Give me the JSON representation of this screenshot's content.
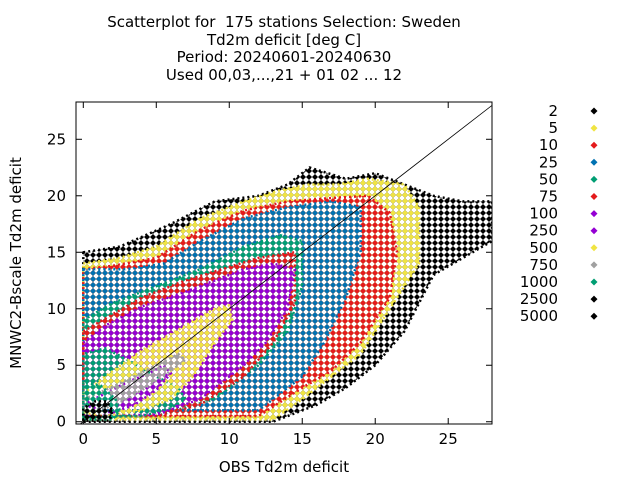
{
  "chart_data": {
    "type": "scatter",
    "title_lines": [
      "Scatterplot for  175 stations Selection: Sweden",
      "Td2m deficit [deg C]",
      "Period: 20240601-20240630",
      "Used 00,03,...,21 + 01 02 ... 12"
    ],
    "xlabel": "OBS Td2m deficit",
    "ylabel": "MNWC2-Bscale Td2m deficit",
    "xlim": [
      -0.5,
      28
    ],
    "ylim": [
      -0.2,
      28.3
    ],
    "xticks": [
      0,
      5,
      10,
      15,
      20,
      25
    ],
    "yticks": [
      0,
      5,
      10,
      15,
      20,
      25
    ],
    "diagonal": true,
    "marker": "diamond",
    "legend_position": "right",
    "legend": [
      {
        "label": "2",
        "color": "#000000"
      },
      {
        "label": "5",
        "color": "#f0e442"
      },
      {
        "label": "10",
        "color": "#e41a1c"
      },
      {
        "label": "25",
        "color": "#0072b2"
      },
      {
        "label": "50",
        "color": "#009e73"
      },
      {
        "label": "75",
        "color": "#e41a1c"
      },
      {
        "label": "100",
        "color": "#9400d3"
      },
      {
        "label": "250",
        "color": "#9400d3"
      },
      {
        "label": "500",
        "color": "#f0e442"
      },
      {
        "label": "750",
        "color": "#a0a0a0"
      },
      {
        "label": "1000",
        "color": "#009e73"
      },
      {
        "label": "2500",
        "color": "#000000"
      },
      {
        "label": "5000",
        "color": "#000000"
      }
    ],
    "density_regions": [
      {
        "color": "#000000",
        "points": [
          [
            0,
            15
          ],
          [
            2.5,
            15.5
          ],
          [
            6,
            17.5
          ],
          [
            9,
            19.5
          ],
          [
            12,
            20
          ],
          [
            14,
            21
          ],
          [
            15.5,
            22.5
          ],
          [
            18,
            21.5
          ],
          [
            20,
            22
          ],
          [
            22,
            21
          ],
          [
            24,
            20
          ],
          [
            26,
            19.5
          ],
          [
            28,
            19.5
          ],
          [
            28,
            16
          ],
          [
            24,
            13
          ],
          [
            22,
            8
          ],
          [
            20,
            5
          ],
          [
            18,
            3
          ],
          [
            16,
            1.5
          ],
          [
            13,
            0
          ],
          [
            0,
            0
          ]
        ]
      },
      {
        "color": "#f0e442",
        "points": [
          [
            0,
            14
          ],
          [
            2.5,
            14.5
          ],
          [
            5,
            15.5
          ],
          [
            8,
            18
          ],
          [
            11,
            19.5
          ],
          [
            13.5,
            20.5
          ],
          [
            15.5,
            21
          ],
          [
            17.5,
            21
          ],
          [
            19.5,
            21.5
          ],
          [
            22,
            21
          ],
          [
            23,
            19
          ],
          [
            23,
            14
          ],
          [
            21,
            10
          ],
          [
            19,
            6
          ],
          [
            17,
            4
          ],
          [
            15,
            2
          ],
          [
            13,
            0.2
          ],
          [
            0,
            0.2
          ]
        ]
      },
      {
        "color": "#e41a1c",
        "points": [
          [
            0,
            13.5
          ],
          [
            2,
            13.8
          ],
          [
            5,
            14.5
          ],
          [
            8,
            17
          ],
          [
            11,
            18.7
          ],
          [
            14,
            19.5
          ],
          [
            17,
            19.8
          ],
          [
            19.5,
            20
          ],
          [
            21,
            18.5
          ],
          [
            21.5,
            15
          ],
          [
            21,
            11
          ],
          [
            19,
            7
          ],
          [
            17,
            4.5
          ],
          [
            15,
            3
          ],
          [
            12,
            0.5
          ],
          [
            0,
            0.5
          ]
        ]
      },
      {
        "color": "#0072b2",
        "points": [
          [
            0,
            13.5
          ],
          [
            3,
            13.5
          ],
          [
            5.5,
            14
          ],
          [
            8,
            16
          ],
          [
            11,
            18
          ],
          [
            14,
            19
          ],
          [
            17,
            19.5
          ],
          [
            19,
            19
          ],
          [
            19,
            15
          ],
          [
            18,
            11
          ],
          [
            16.5,
            7
          ],
          [
            15,
            4
          ],
          [
            12,
            1
          ],
          [
            0,
            1
          ]
        ]
      },
      {
        "color": "#009e73",
        "points": [
          [
            0,
            9
          ],
          [
            2,
            10.5
          ],
          [
            5,
            12
          ],
          [
            8,
            13.5
          ],
          [
            11,
            15.5
          ],
          [
            13.5,
            16.5
          ],
          [
            15,
            16
          ],
          [
            15,
            12
          ],
          [
            14,
            8
          ],
          [
            12,
            5
          ],
          [
            9,
            2
          ],
          [
            5,
            0.5
          ],
          [
            0,
            0.5
          ]
        ]
      },
      {
        "color": "#e41a1c",
        "points": [
          [
            0,
            8
          ],
          [
            2,
            9.5
          ],
          [
            4,
            11
          ],
          [
            7,
            12.5
          ],
          [
            9.5,
            13.5
          ],
          [
            12,
            14.5
          ],
          [
            14.5,
            15
          ],
          [
            14.5,
            10.5
          ],
          [
            13,
            7
          ],
          [
            11,
            4
          ],
          [
            8,
            1.5
          ],
          [
            5,
            0.5
          ],
          [
            0,
            0.5
          ]
        ]
      },
      {
        "color": "#9400d3",
        "points": [
          [
            0,
            7
          ],
          [
            1.5,
            8.5
          ],
          [
            4,
            10.2
          ],
          [
            7,
            11.5
          ],
          [
            9,
            12.5
          ],
          [
            11,
            13.5
          ],
          [
            13,
            14
          ],
          [
            14.5,
            13.5
          ],
          [
            14,
            10
          ],
          [
            12.5,
            7
          ],
          [
            11,
            5
          ],
          [
            8,
            2
          ],
          [
            5,
            0.6
          ],
          [
            0,
            0.6
          ]
        ]
      },
      {
        "color": "#009e73",
        "points": [
          [
            0,
            0.4
          ],
          [
            0,
            6
          ],
          [
            1.5,
            6.5
          ],
          [
            3,
            5.5
          ],
          [
            5,
            4
          ],
          [
            6.5,
            3
          ],
          [
            7,
            2
          ],
          [
            6,
            1.2
          ],
          [
            4,
            0.5
          ]
        ]
      },
      {
        "color": "#f0e442",
        "points": [
          [
            0,
            2.5
          ],
          [
            1.5,
            4
          ],
          [
            4,
            6.3
          ],
          [
            7,
            8.5
          ],
          [
            9,
            10
          ],
          [
            10,
            10.3
          ],
          [
            10.2,
            9
          ],
          [
            9,
            7
          ],
          [
            7.5,
            4
          ],
          [
            6,
            2
          ],
          [
            4,
            1
          ],
          [
            1.5,
            0.5
          ],
          [
            0,
            0.8
          ]
        ]
      },
      {
        "color": "#9400d3",
        "points": [
          [
            0,
            1.5
          ],
          [
            1.5,
            2.5
          ],
          [
            3,
            3.5
          ],
          [
            4.5,
            4.3
          ],
          [
            5.5,
            5
          ],
          [
            6,
            4.3
          ],
          [
            5,
            2.8
          ],
          [
            3.5,
            1.5
          ],
          [
            2,
            0.8
          ]
        ]
      },
      {
        "color": "#a0a0a0",
        "points": [
          [
            0,
            2
          ],
          [
            1,
            2.5
          ],
          [
            3,
            3.7
          ],
          [
            5,
            5
          ],
          [
            6.5,
            6
          ],
          [
            7,
            5.5
          ],
          [
            6,
            4.5
          ],
          [
            4.5,
            3.2
          ],
          [
            3,
            2
          ],
          [
            1.5,
            1.2
          ],
          [
            0,
            1
          ]
        ]
      },
      {
        "color": "#009e73",
        "points": [
          [
            0,
            0.2
          ],
          [
            0,
            3.5
          ],
          [
            1.2,
            3.2
          ],
          [
            2.2,
            2
          ],
          [
            2.5,
            1
          ],
          [
            2,
            0.2
          ]
        ]
      },
      {
        "color": "#000000",
        "points": [
          [
            0,
            0.1
          ],
          [
            0,
            1.2
          ],
          [
            0.8,
            1.8
          ],
          [
            1.6,
            1.8
          ],
          [
            2,
            1
          ],
          [
            1.8,
            0.1
          ]
        ]
      }
    ]
  }
}
